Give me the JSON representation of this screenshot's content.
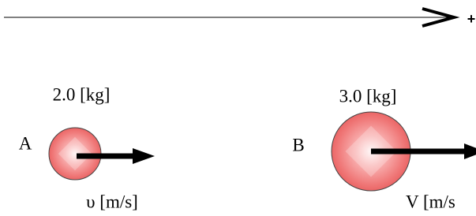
{
  "axis": {
    "sign": "+"
  },
  "bodies": [
    {
      "label": "A",
      "mass": "2.0 [kg]",
      "velocity": "υ [m/s]"
    },
    {
      "label": "B",
      "mass": "3.0 [kg]",
      "velocity": "V [m/s"
    }
  ]
}
